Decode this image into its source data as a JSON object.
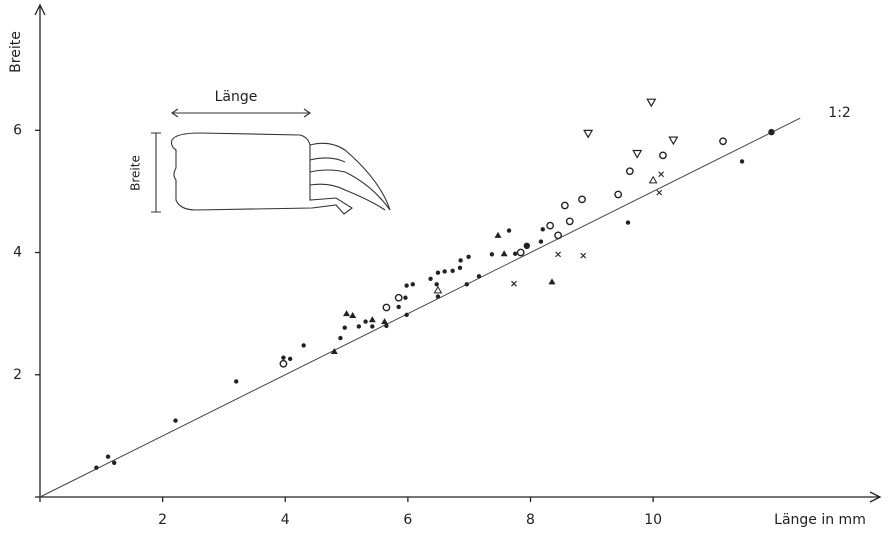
{
  "chart_data": {
    "type": "scatter",
    "x_label": "Länge in mm",
    "y_label": "Breite",
    "xlim": [
      0,
      13.7
    ],
    "ylim": [
      0,
      8.05
    ],
    "xticks": [
      2,
      4,
      6,
      8,
      10
    ],
    "yticks": [
      2,
      4,
      6
    ],
    "ratio_line": {
      "label": "1:2",
      "slope": 0.5,
      "x_end": 12.4
    },
    "inset_labels": {
      "length": "Länge",
      "width": "Breite"
    },
    "color": "#222",
    "series": [
      {
        "marker": "dot",
        "x": [
          0.92,
          1.11,
          1.21,
          2.21,
          3.2,
          3.97,
          4.08,
          4.3,
          4.9,
          4.97,
          5.2,
          5.31,
          5.42,
          5.65,
          5.85,
          5.96,
          5.98,
          6.08,
          5.98,
          6.37,
          6.47,
          6.49,
          6.49,
          6.6,
          6.73,
          6.85,
          6.86,
          6.99,
          6.96,
          7.16,
          7.37,
          7.65,
          7.75,
          8.17,
          8.2,
          9.59,
          11.45
        ],
        "y": [
          0.48,
          0.66,
          0.56,
          1.25,
          1.89,
          2.28,
          2.26,
          2.48,
          2.6,
          2.77,
          2.79,
          2.87,
          2.79,
          2.8,
          3.11,
          3.26,
          3.46,
          3.48,
          2.98,
          3.57,
          3.48,
          3.67,
          3.28,
          3.69,
          3.7,
          3.75,
          3.87,
          3.93,
          3.48,
          3.61,
          3.97,
          4.36,
          3.98,
          4.18,
          4.38,
          4.49,
          5.49
        ]
      },
      {
        "marker": "big-dot",
        "x": [
          7.94,
          11.93
        ],
        "y": [
          4.11,
          5.97
        ]
      },
      {
        "marker": "circle",
        "x": [
          3.97,
          5.65,
          5.85,
          7.84,
          8.32,
          8.45,
          8.56,
          8.64,
          8.84,
          9.43,
          9.62,
          10.16,
          11.14
        ],
        "y": [
          2.18,
          3.1,
          3.26,
          4.0,
          4.44,
          4.28,
          4.77,
          4.51,
          4.87,
          4.95,
          5.33,
          5.59,
          5.82
        ]
      },
      {
        "marker": "triangle-filled",
        "x": [
          4.8,
          5.0,
          5.1,
          5.42,
          5.62,
          7.47,
          7.57,
          8.35
        ],
        "y": [
          2.38,
          3.0,
          2.97,
          2.9,
          2.87,
          4.28,
          3.98,
          3.52
        ]
      },
      {
        "marker": "triangle-open",
        "x": [
          6.49,
          10.0
        ],
        "y": [
          3.38,
          5.18
        ]
      },
      {
        "marker": "triangle-down",
        "x": [
          8.94,
          9.97,
          9.74,
          10.33
        ],
        "y": [
          5.95,
          6.46,
          5.62,
          5.84
        ]
      },
      {
        "marker": "cross",
        "x": [
          7.73,
          8.45,
          8.86,
          10.1,
          10.13
        ],
        "y": [
          3.49,
          3.97,
          3.95,
          4.98,
          5.28
        ]
      }
    ]
  }
}
